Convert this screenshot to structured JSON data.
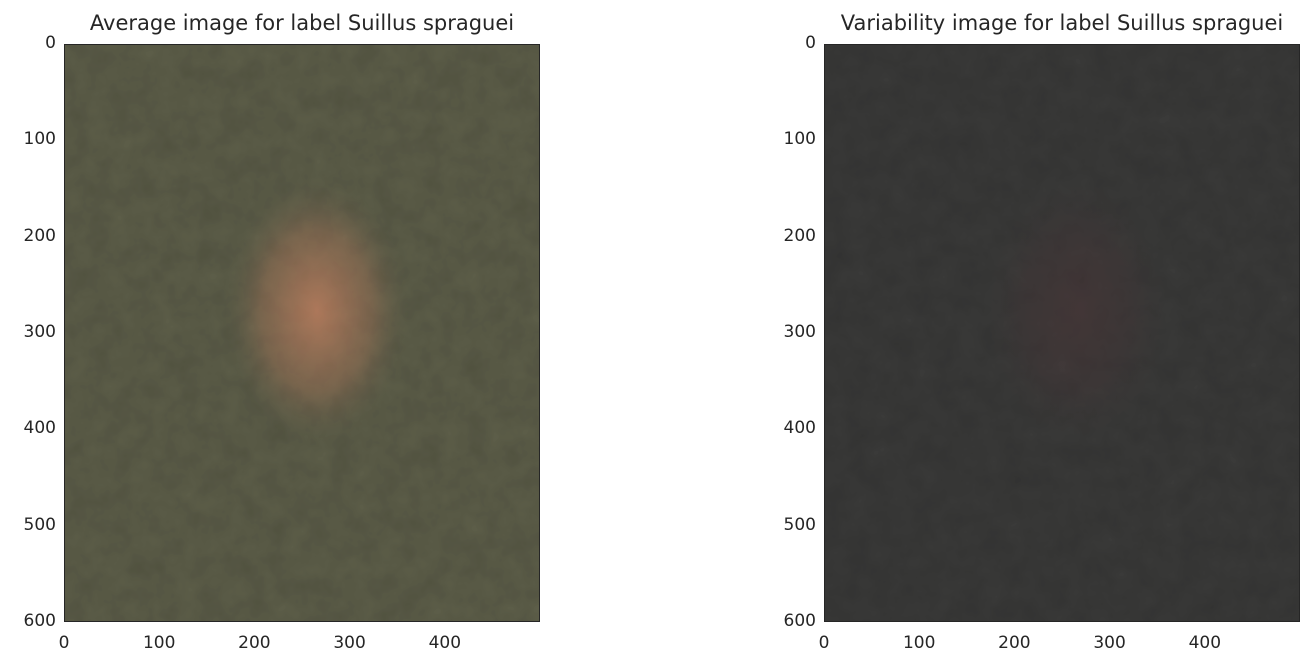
{
  "chart_data": [
    {
      "type": "image",
      "title": "Average image for label Suillus spraguei",
      "xticks": [
        0,
        100,
        200,
        300,
        400
      ],
      "yticks": [
        0,
        100,
        200,
        300,
        400,
        500,
        600
      ],
      "xlim": [
        0,
        500
      ],
      "ylim": [
        600,
        0
      ],
      "grid": false,
      "colors": {
        "base": "#5e5f4a",
        "highlight": "#b27a5c",
        "dark": "#3f4136"
      }
    },
    {
      "type": "image",
      "title": "Variability image for label Suillus spraguei",
      "xticks": [
        0,
        100,
        200,
        300,
        400
      ],
      "yticks": [
        0,
        100,
        200,
        300,
        400,
        500,
        600
      ],
      "xlim": [
        0,
        500
      ],
      "ylim": [
        600,
        0
      ],
      "grid": false,
      "colors": {
        "base": "#3b3b3a",
        "highlight": "#4a3638",
        "dark": "#2b2c2d"
      }
    }
  ]
}
